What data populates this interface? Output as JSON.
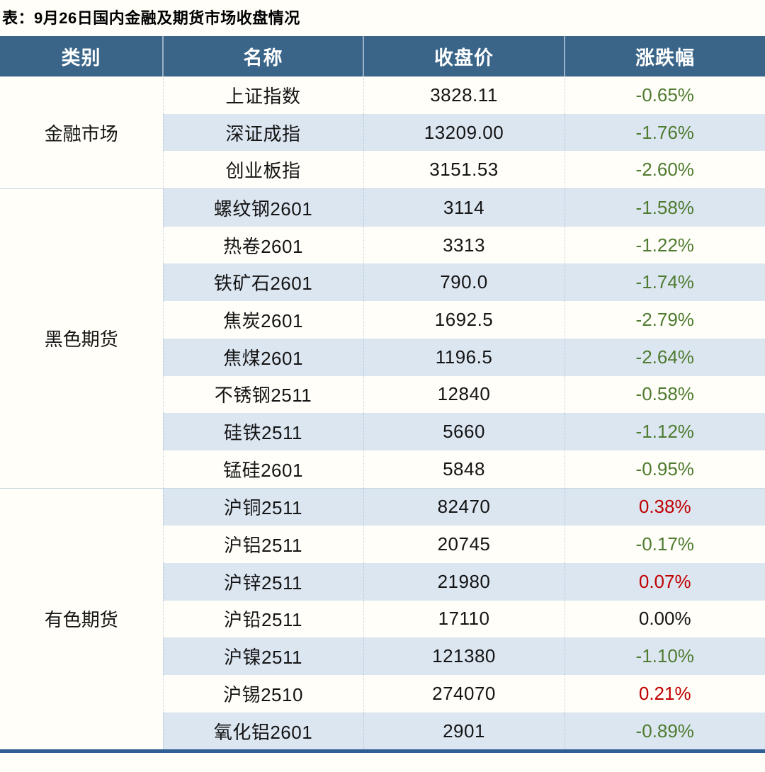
{
  "title": "表：9月26日国内金融及期货市场收盘情况",
  "columns": [
    "类别",
    "名称",
    "收盘价",
    "涨跌幅"
  ],
  "colors": {
    "header_bg": "#3a6589",
    "stripe_bg": "#dce6f1",
    "up_red": "#c00000",
    "down_green": "#4e7b2f",
    "flat_black": "#141414",
    "bottom_border": "#2e5e94"
  },
  "groups": [
    {
      "category": "金融市场",
      "rows": [
        {
          "name": "上证指数",
          "close": "3828.11",
          "change": "-0.65%",
          "direction": "down"
        },
        {
          "name": "深证成指",
          "close": "13209.00",
          "change": "-1.76%",
          "direction": "down"
        },
        {
          "name": "创业板指",
          "close": "3151.53",
          "change": "-2.60%",
          "direction": "down"
        }
      ]
    },
    {
      "category": "黑色期货",
      "rows": [
        {
          "name": "螺纹钢2601",
          "close": "3114",
          "change": "-1.58%",
          "direction": "down"
        },
        {
          "name": "热卷2601",
          "close": "3313",
          "change": "-1.22%",
          "direction": "down"
        },
        {
          "name": "铁矿石2601",
          "close": "790.0",
          "change": "-1.74%",
          "direction": "down"
        },
        {
          "name": "焦炭2601",
          "close": "1692.5",
          "change": "-2.79%",
          "direction": "down"
        },
        {
          "name": "焦煤2601",
          "close": "1196.5",
          "change": "-2.64%",
          "direction": "down"
        },
        {
          "name": "不锈钢2511",
          "close": "12840",
          "change": "-0.58%",
          "direction": "down"
        },
        {
          "name": "硅铁2511",
          "close": "5660",
          "change": "-1.12%",
          "direction": "down"
        },
        {
          "name": "锰硅2601",
          "close": "5848",
          "change": "-0.95%",
          "direction": "down"
        }
      ]
    },
    {
      "category": "有色期货",
      "rows": [
        {
          "name": "沪铜2511",
          "close": "82470",
          "change": "0.38%",
          "direction": "up"
        },
        {
          "name": "沪铝2511",
          "close": "20745",
          "change": "-0.17%",
          "direction": "down"
        },
        {
          "name": "沪锌2511",
          "close": "21980",
          "change": "0.07%",
          "direction": "up"
        },
        {
          "name": "沪铅2511",
          "close": "17110",
          "change": "0.00%",
          "direction": "flat"
        },
        {
          "name": "沪镍2511",
          "close": "121380",
          "change": "-1.10%",
          "direction": "down"
        },
        {
          "name": "沪锡2510",
          "close": "274070",
          "change": "0.21%",
          "direction": "up"
        },
        {
          "name": "氧化铝2601",
          "close": "2901",
          "change": "-0.89%",
          "direction": "down"
        }
      ]
    }
  ]
}
